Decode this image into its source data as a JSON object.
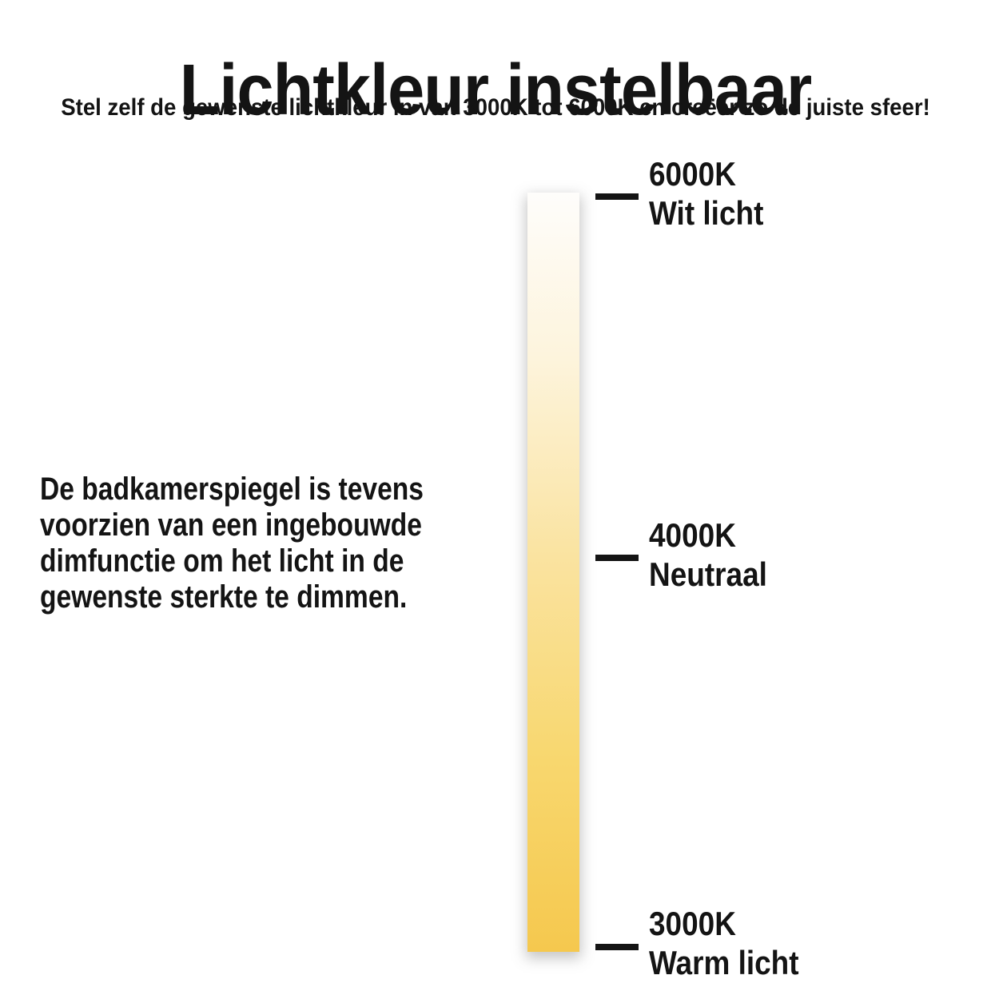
{
  "header": {
    "title": "Lichtkleur instelbaar",
    "subtitle": "Stel zelf de gewenste lichtkleur in van 3000K tot 6000K en creëer zo de juiste sfeer!"
  },
  "description": {
    "lines": [
      "De badkamerspiegel is tevens",
      "voorzien van een ingebouwde",
      "dimfunctie om het licht in de",
      "gewenste sterkte te dimmen."
    ]
  },
  "scale": {
    "levels": [
      {
        "kelvin": "6000K",
        "label": "Wit licht"
      },
      {
        "kelvin": "4000K",
        "label": "Neutraal"
      },
      {
        "kelvin": "3000K",
        "label": "Warm licht"
      }
    ],
    "gradient": {
      "top": "#fefdfb",
      "upper": "#fdf4dc",
      "middle": "#fae3a0",
      "lower": "#f8d76e",
      "bottom": "#f5c84e"
    }
  },
  "colors": {
    "text": "#141414",
    "background": "#ffffff",
    "tick": "#141414"
  }
}
